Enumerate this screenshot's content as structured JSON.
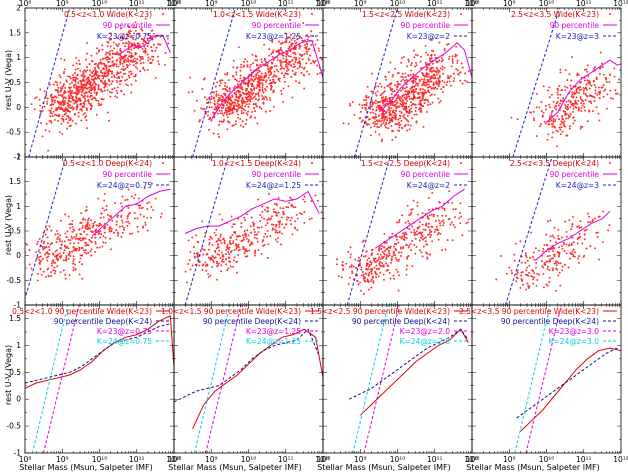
{
  "figure": {
    "ylabel": "rest U-V  (Vega)",
    "xlabel": "Stellar Mass  (Msun, Salpeter IMF)",
    "x_ticks": [
      "10⁸",
      "10⁹",
      "10¹⁰",
      "10¹¹",
      "10¹²"
    ],
    "y_ticks_rows_top": [
      "2",
      "1.5",
      "1",
      "0.5",
      "0",
      "-0.5",
      "-1"
    ],
    "y_ticks_row_bottom": [
      "1.5",
      "1",
      "0.5",
      "0",
      "-0.5",
      "-1"
    ],
    "colors": {
      "scatter": "#ff2a2a",
      "p90": "#e000e0",
      "p90_wide": "#e00000",
      "p90_deep": "#101090",
      "k_line": "#2020c0",
      "k_line2": "#00d0e0"
    }
  },
  "chart_data": [
    {
      "type": "scatter",
      "row": 0,
      "col": 0,
      "xscale": "log",
      "xlim": [
        8,
        12
      ],
      "ylim": [
        -1,
        2
      ],
      "legend": [
        "0.5<z<1.0 Wide(K<23)",
        "90 percentile",
        "K=23@z=0.75"
      ],
      "scatter_center": {
        "logM": [
          8.9,
          11.2
        ],
        "uv": [
          -0.05,
          1.35
        ]
      },
      "scatter_density": 1.0,
      "p90": {
        "x": [
          10.5,
          10.7,
          10.9,
          11.1,
          11.3,
          11.5,
          11.7,
          11.9
        ],
        "y": [
          1.05,
          1.15,
          1.25,
          1.2,
          1.3,
          1.45,
          1.45,
          1.1
        ]
      },
      "k_line": {
        "x": [
          8.1,
          9.2
        ],
        "y": [
          -1.0,
          2.0
        ]
      }
    },
    {
      "type": "scatter",
      "row": 0,
      "col": 1,
      "xscale": "log",
      "xlim": [
        8,
        12
      ],
      "ylim": [
        -1,
        2
      ],
      "legend": [
        "1.0<z<1.5 Wide(K<23)",
        "90 percentile",
        "K=23@z=1.25"
      ],
      "scatter_center": {
        "logM": [
          9.3,
          11.5
        ],
        "uv": [
          -0.05,
          1.25
        ]
      },
      "scatter_density": 0.9,
      "p90": {
        "x": [
          9.0,
          9.3,
          9.6,
          9.9,
          10.2,
          10.5,
          10.8,
          11.1,
          11.4,
          11.7,
          12.0
        ],
        "y": [
          -0.25,
          0.1,
          0.35,
          0.55,
          0.75,
          0.9,
          1.05,
          1.15,
          1.3,
          1.35,
          0.6
        ]
      },
      "k_line": {
        "x": [
          8.5,
          9.65
        ],
        "y": [
          -1.0,
          2.0
        ]
      }
    },
    {
      "type": "scatter",
      "row": 0,
      "col": 2,
      "xscale": "log",
      "xlim": [
        8,
        12
      ],
      "ylim": [
        -1,
        2
      ],
      "legend": [
        "1.5<z<2.5 Wide(K<23)",
        "90 percentile",
        "K=23@z=2"
      ],
      "scatter_center": {
        "logM": [
          9.5,
          11.3
        ],
        "uv": [
          -0.2,
          0.9
        ]
      },
      "scatter_density": 0.85,
      "p90": {
        "x": [
          9.5,
          9.8,
          10.1,
          10.4,
          10.7,
          11.0,
          11.3,
          11.6,
          11.8,
          12.0
        ],
        "y": [
          -0.1,
          0.1,
          0.4,
          0.6,
          0.8,
          0.95,
          1.1,
          1.3,
          1.15,
          0.6
        ]
      },
      "k_line": {
        "x": [
          8.85,
          10.0
        ],
        "y": [
          -1.0,
          2.0
        ]
      }
    },
    {
      "type": "scatter",
      "row": 0,
      "col": 3,
      "xscale": "log",
      "xlim": [
        8,
        12
      ],
      "ylim": [
        -1,
        2
      ],
      "legend": [
        "2.5<z<3.5 Wide(K<23)",
        "90 percentile",
        "K=23@z=3"
      ],
      "scatter_center": {
        "logM": [
          10.1,
          11.4
        ],
        "uv": [
          -0.3,
          0.6
        ]
      },
      "scatter_density": 0.35,
      "p90": {
        "x": [
          10.0,
          10.3,
          10.6,
          10.9,
          11.2,
          11.5,
          11.7,
          11.9,
          12.1
        ],
        "y": [
          -0.3,
          -0.1,
          0.3,
          0.55,
          0.7,
          0.85,
          0.95,
          0.85,
          0.9
        ]
      },
      "k_line": {
        "x": [
          9.1,
          10.35
        ],
        "y": [
          -1.0,
          2.0
        ]
      }
    },
    {
      "type": "scatter",
      "row": 1,
      "col": 0,
      "xscale": "log",
      "xlim": [
        8,
        12
      ],
      "ylim": [
        -1,
        2
      ],
      "legend": [
        "0.5<z<1.0 Deep(K<24)",
        "90 percentile",
        "K=24@z=0.75"
      ],
      "scatter_center": {
        "logM": [
          8.5,
          11.3
        ],
        "uv": [
          -0.1,
          1.1
        ]
      },
      "scatter_density": 0.45,
      "p90": {
        "x": [
          9.8,
          10.1,
          10.4,
          10.7,
          11.0,
          11.3,
          11.6,
          11.9
        ],
        "y": [
          0.4,
          0.6,
          0.8,
          1.0,
          1.05,
          1.2,
          1.3,
          1.35
        ]
      },
      "k_line": {
        "x": [
          7.95,
          9.1
        ],
        "y": [
          -1.0,
          2.0
        ]
      }
    },
    {
      "type": "scatter",
      "row": 1,
      "col": 1,
      "xscale": "log",
      "xlim": [
        8,
        12
      ],
      "ylim": [
        -1,
        2
      ],
      "legend": [
        "1.0<z<1.5 Deep(K<24)",
        "90 percentile",
        "K=24@z=1.25"
      ],
      "scatter_center": {
        "logM": [
          8.9,
          11.4
        ],
        "uv": [
          -0.1,
          1.0
        ]
      },
      "scatter_density": 0.4,
      "p90": {
        "x": [
          8.3,
          8.6,
          8.9,
          9.2,
          9.5,
          9.8,
          10.1,
          10.4,
          10.7,
          11.0,
          11.3,
          11.6,
          11.9
        ],
        "y": [
          0.45,
          0.55,
          0.6,
          0.6,
          0.7,
          0.8,
          0.95,
          1.05,
          1.15,
          1.1,
          1.15,
          1.3,
          0.85
        ]
      },
      "k_line": {
        "x": [
          8.3,
          9.45
        ],
        "y": [
          -1.0,
          2.0
        ]
      }
    },
    {
      "type": "scatter",
      "row": 1,
      "col": 2,
      "xscale": "log",
      "xlim": [
        8,
        12
      ],
      "ylim": [
        -1,
        2
      ],
      "legend": [
        "1.5<z<2.5 Deep(K<24)",
        "90 percentile",
        "K=24@z=2"
      ],
      "scatter_center": {
        "logM": [
          9.0,
          11.5
        ],
        "uv": [
          -0.35,
          0.9
        ]
      },
      "scatter_density": 0.45,
      "p90": {
        "x": [
          9.4,
          9.7,
          10.0,
          10.3,
          10.6,
          10.9,
          11.2,
          11.5,
          11.8
        ],
        "y": [
          0.15,
          0.3,
          0.45,
          0.6,
          0.75,
          0.9,
          1.0,
          1.2,
          1.35
        ]
      },
      "k_line": {
        "x": [
          8.65,
          9.8
        ],
        "y": [
          -1.0,
          2.0
        ]
      }
    },
    {
      "type": "scatter",
      "row": 1,
      "col": 3,
      "xscale": "log",
      "xlim": [
        8,
        12
      ],
      "ylim": [
        -1,
        2
      ],
      "legend": [
        "2.5<z<3.5 Deep(K<24)",
        "90 percentile",
        "K=24@z=3"
      ],
      "scatter_center": {
        "logM": [
          9.4,
          11.3
        ],
        "uv": [
          -0.45,
          0.7
        ]
      },
      "scatter_density": 0.25,
      "p90": {
        "x": [
          9.7,
          10.0,
          10.3,
          10.6,
          10.9,
          11.2,
          11.5,
          11.7
        ],
        "y": [
          -0.1,
          0.1,
          0.25,
          0.35,
          0.5,
          0.65,
          0.75,
          0.9
        ]
      },
      "k_line": {
        "x": [
          8.9,
          10.15
        ],
        "y": [
          -1.0,
          2.0
        ]
      }
    },
    {
      "type": "line",
      "row": 2,
      "col": 0,
      "xscale": "log",
      "xlim": [
        8,
        12
      ],
      "ylim": [
        -1,
        1.75
      ],
      "legend": [
        "0.5<z<1.0 90 percentile Wide(K<23)",
        "90 percentile Deep(K<24)",
        "K=23@z=0.75",
        "K=24@z=0.75"
      ],
      "series": [
        {
          "role": "wide",
          "x": [
            8.0,
            8.3,
            8.6,
            8.9,
            9.2,
            9.5,
            9.8,
            10.1,
            10.4,
            10.7,
            11.0,
            11.3,
            11.6,
            11.9,
            12.0
          ],
          "y": [
            0.2,
            0.3,
            0.35,
            0.4,
            0.45,
            0.55,
            0.7,
            0.9,
            1.05,
            1.15,
            1.2,
            1.3,
            1.45,
            1.55,
            0.6
          ]
        },
        {
          "role": "deep",
          "x": [
            8.0,
            8.3,
            8.6,
            8.9,
            9.2,
            9.5,
            9.8,
            10.1,
            10.4,
            10.7,
            11.0,
            11.3,
            11.6,
            11.9
          ],
          "y": [
            0.3,
            0.35,
            0.4,
            0.45,
            0.5,
            0.6,
            0.75,
            0.9,
            1.05,
            1.1,
            1.15,
            1.25,
            1.35,
            1.4
          ]
        },
        {
          "role": "k23",
          "x": [
            8.5,
            9.45
          ],
          "y": [
            -1.0,
            1.75
          ]
        },
        {
          "role": "k24",
          "x": [
            8.2,
            9.15
          ],
          "y": [
            -1.0,
            1.75
          ]
        }
      ]
    },
    {
      "type": "line",
      "row": 2,
      "col": 1,
      "xscale": "log",
      "xlim": [
        8,
        12
      ],
      "ylim": [
        -1,
        1.75
      ],
      "legend": [
        "1.0<z<1.5 90 percentile Wide(K<23)",
        "90 percentile Deep(K<24)",
        "K=23@z=1.25",
        "K=24@z=1.25"
      ],
      "series": [
        {
          "role": "wide",
          "x": [
            8.5,
            8.8,
            9.1,
            9.4,
            9.7,
            10.0,
            10.3,
            10.6,
            10.9,
            11.2,
            11.5,
            11.8,
            12.0
          ],
          "y": [
            -0.55,
            -0.1,
            0.15,
            0.3,
            0.45,
            0.65,
            0.85,
            1.0,
            1.15,
            1.2,
            1.3,
            1.15,
            0.4
          ]
        },
        {
          "role": "deep",
          "x": [
            8.0,
            8.3,
            8.6,
            8.9,
            9.2,
            9.5,
            9.8,
            10.1,
            10.4,
            10.7,
            11.0,
            11.3,
            11.6,
            11.9
          ],
          "y": [
            -0.05,
            0.05,
            0.15,
            0.2,
            0.25,
            0.4,
            0.55,
            0.75,
            0.9,
            1.0,
            1.05,
            1.1,
            1.3,
            0.8
          ]
        },
        {
          "role": "k23",
          "x": [
            8.85,
            9.8
          ],
          "y": [
            -1.0,
            1.75
          ]
        },
        {
          "role": "k24",
          "x": [
            8.55,
            9.5
          ],
          "y": [
            -1.0,
            1.75
          ]
        }
      ]
    },
    {
      "type": "line",
      "row": 2,
      "col": 2,
      "xscale": "log",
      "xlim": [
        8,
        12
      ],
      "ylim": [
        -1,
        1.75
      ],
      "legend": [
        "1.5<z<2.5 90 percentile Wide(K<23)",
        "90 percentile Deep(K<24)",
        "K=23@z=2.0",
        "K=24@z=2.0"
      ],
      "series": [
        {
          "role": "wide",
          "x": [
            9.0,
            9.3,
            9.6,
            9.9,
            10.2,
            10.5,
            10.8,
            11.1,
            11.4,
            11.7,
            11.9
          ],
          "y": [
            -0.3,
            -0.1,
            0.1,
            0.3,
            0.5,
            0.7,
            0.85,
            1.0,
            1.1,
            1.3,
            1.05
          ]
        },
        {
          "role": "deep",
          "x": [
            8.7,
            9.0,
            9.3,
            9.6,
            9.9,
            10.2,
            10.5,
            10.8,
            11.1,
            11.4,
            11.7,
            11.9
          ],
          "y": [
            0.0,
            0.1,
            0.2,
            0.35,
            0.5,
            0.65,
            0.8,
            0.95,
            1.05,
            1.15,
            1.3,
            1.1
          ]
        },
        {
          "role": "k23",
          "x": [
            9.1,
            10.05
          ],
          "y": [
            -1.0,
            1.75
          ]
        },
        {
          "role": "k24",
          "x": [
            8.8,
            9.75
          ],
          "y": [
            -1.0,
            1.75
          ]
        }
      ]
    },
    {
      "type": "line",
      "row": 2,
      "col": 3,
      "xscale": "log",
      "xlim": [
        8,
        12
      ],
      "ylim": [
        -1,
        1.75
      ],
      "legend": [
        "2.5<z<3.5 90 percentile Wide(K<23)",
        "90 percentile Deep(K<24)",
        "K=23@z=3.0",
        "K=24@z=3.0"
      ],
      "series": [
        {
          "role": "wide",
          "x": [
            9.3,
            9.6,
            9.9,
            10.2,
            10.5,
            10.8,
            11.1,
            11.4,
            11.7,
            12.0
          ],
          "y": [
            -0.6,
            -0.4,
            -0.2,
            0.05,
            0.3,
            0.55,
            0.75,
            0.9,
            0.95,
            0.9
          ]
        },
        {
          "role": "deep",
          "x": [
            9.2,
            9.5,
            9.8,
            10.1,
            10.4,
            10.7,
            11.0,
            11.3,
            11.6,
            11.9
          ],
          "y": [
            -0.35,
            -0.2,
            -0.05,
            0.1,
            0.25,
            0.4,
            0.55,
            0.7,
            0.85,
            0.95
          ]
        },
        {
          "role": "k23",
          "x": [
            9.45,
            10.4
          ],
          "y": [
            -1.0,
            1.75
          ]
        },
        {
          "role": "k24",
          "x": [
            9.15,
            10.1
          ],
          "y": [
            -1.0,
            1.75
          ]
        }
      ]
    }
  ]
}
